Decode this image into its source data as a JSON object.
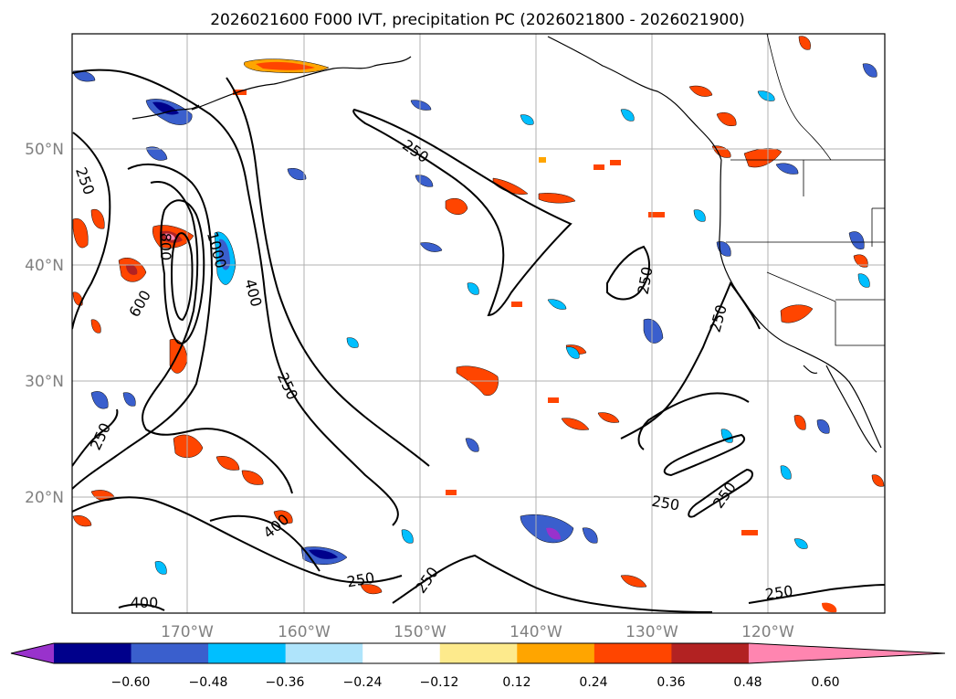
{
  "title": "2026021600 F000 IVT, precipitation PC (2026021800 - 2026021900)",
  "map": {
    "lon_ticks": [
      "170°W",
      "160°W",
      "150°W",
      "140°W",
      "130°W",
      "120°W"
    ],
    "lat_ticks": [
      "50°N",
      "40°N",
      "30°N",
      "20°N"
    ],
    "lon_range": [
      -180,
      -110
    ],
    "lat_range": [
      10,
      60
    ],
    "gridlines": true,
    "ivt_contour_labels": [
      "250",
      "250",
      "250",
      "250",
      "250",
      "250",
      "250",
      "250",
      "250",
      "250",
      "400",
      "400",
      "400",
      "600",
      "800",
      "1000"
    ]
  },
  "colorbar": {
    "ticks": [
      "−0.60",
      "−0.48",
      "−0.36",
      "−0.24",
      "−0.12",
      "0.12",
      "0.24",
      "0.36",
      "0.48",
      "0.60"
    ],
    "colors": [
      "#9932cc",
      "#00008b",
      "#3a5fcd",
      "#00bfff",
      "#afe4fb",
      "#ffffff",
      "#fdea8c",
      "#ffa500",
      "#ff4500",
      "#b22222",
      "#ff85b0"
    ],
    "extend": "both"
  },
  "colors": {
    "contour": "#000000",
    "gridline": "#b0b0b0",
    "coastline": "#000000"
  }
}
